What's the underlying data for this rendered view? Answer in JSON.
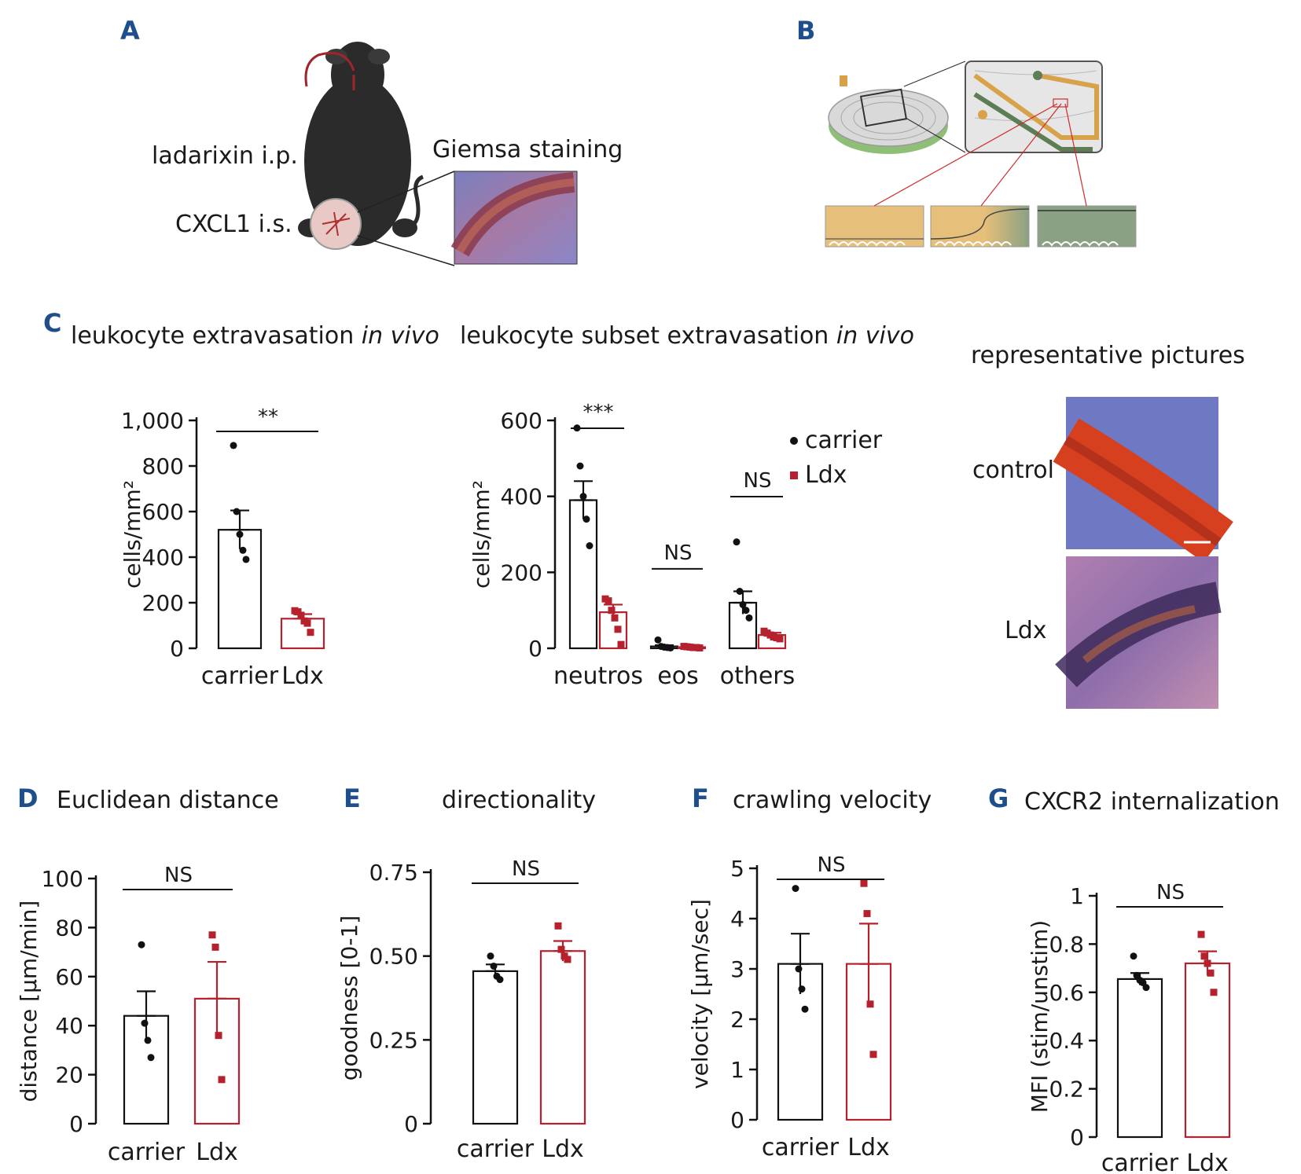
{
  "panels": {
    "A": {
      "letter": "A",
      "drug_label": "ladarixin i.p.",
      "chemokine_label": "CXCL1 i.s.",
      "stain_label": "Giemsa staining"
    },
    "B": {
      "letter": "B"
    },
    "C": {
      "letter": "C",
      "images_title": "representative pictures",
      "image_labels": [
        "control",
        "Ldx"
      ]
    },
    "D": {
      "letter": "D"
    },
    "E": {
      "letter": "E"
    },
    "F": {
      "letter": "F"
    },
    "G": {
      "letter": "G"
    }
  },
  "colors": {
    "carrier": "#111111",
    "ldx": "#b5222d",
    "letter": "#1f4e8c"
  },
  "chart_data": [
    {
      "id": "C1",
      "type": "bar",
      "title": "leukocyte extravasation ",
      "title_italic": "in vivo",
      "ylabel": "cells/mm²",
      "ylim": [
        0,
        1000
      ],
      "yticks": [
        0,
        200,
        400,
        600,
        800,
        1000
      ],
      "ytick_labels": [
        "0",
        "200",
        "400",
        "600",
        "800",
        "1,000"
      ],
      "categories": [
        "carrier",
        "Ldx"
      ],
      "values": [
        520,
        130
      ],
      "errors": [
        85,
        20
      ],
      "points": [
        [
          890,
          600,
          500,
          430,
          390
        ],
        [
          165,
          160,
          145,
          120,
          110,
          70
        ]
      ],
      "annotations": [
        {
          "text": "**",
          "from": 0,
          "to": 1,
          "y": 1000
        }
      ]
    },
    {
      "id": "C2",
      "type": "bar",
      "title": "leukocyte subset extravasation ",
      "title_italic": "in vivo",
      "ylabel": "cells/mm²",
      "ylim": [
        0,
        600
      ],
      "yticks": [
        0,
        200,
        400,
        600
      ],
      "ytick_labels": [
        "0",
        "200",
        "400",
        "600"
      ],
      "categories": [
        "neutros",
        "eos",
        "others"
      ],
      "series": [
        {
          "name": "carrier",
          "values": [
            390,
            5,
            120
          ],
          "errors": [
            50,
            3,
            30
          ],
          "points": [
            [
              580,
              480,
              400,
              340,
              270
            ],
            [
              22,
              5,
              3,
              2,
              1
            ],
            [
              280,
              150,
              115,
              100,
              80
            ]
          ]
        },
        {
          "name": "Ldx",
          "values": [
            95,
            3,
            35
          ],
          "errors": [
            20,
            1,
            6
          ],
          "points": [
            [
              130,
              125,
              100,
              80,
              50,
              10
            ],
            [
              5,
              4,
              3,
              2,
              2,
              1
            ],
            [
              45,
              40,
              35,
              30,
              28,
              25
            ]
          ]
        }
      ],
      "legend": [
        "carrier",
        "Ldx"
      ],
      "annotations": [
        {
          "text": "***",
          "group": 0,
          "y": 600
        },
        {
          "text": "NS",
          "group": 1,
          "y": 230
        },
        {
          "text": "NS",
          "group": 2,
          "y": 420
        }
      ]
    },
    {
      "id": "D",
      "type": "bar",
      "title": "Euclidean distance",
      "ylabel": "distance [µm/min]",
      "ylim": [
        0,
        100
      ],
      "yticks": [
        0,
        20,
        40,
        60,
        80,
        100
      ],
      "ytick_labels": [
        "0",
        "20",
        "40",
        "60",
        "80",
        "100"
      ],
      "categories": [
        "carrier",
        "Ldx"
      ],
      "values": [
        44,
        51
      ],
      "errors": [
        10,
        15
      ],
      "points": [
        [
          73,
          41,
          34,
          27
        ],
        [
          77,
          72,
          36,
          18
        ]
      ],
      "annotations": [
        {
          "text": "NS",
          "from": 0,
          "to": 1,
          "y": 100
        }
      ]
    },
    {
      "id": "E",
      "type": "bar",
      "title": "directionality",
      "ylabel": "goodness [0-1]",
      "ylim": [
        0,
        0.75
      ],
      "yticks": [
        0,
        0.25,
        0.5,
        0.75
      ],
      "ytick_labels": [
        "0",
        "0.25",
        "0.50",
        "0.75"
      ],
      "categories": [
        "carrier",
        "Ldx"
      ],
      "values": [
        0.455,
        0.515
      ],
      "errors": [
        0.02,
        0.03
      ],
      "points": [
        [
          0.5,
          0.47,
          0.44,
          0.43
        ],
        [
          0.59,
          0.52,
          0.5,
          0.49
        ]
      ],
      "annotations": [
        {
          "text": "NS",
          "from": 0,
          "to": 1,
          "y": 0.75
        }
      ]
    },
    {
      "id": "F",
      "type": "bar",
      "title": "crawling velocity",
      "ylabel": "velocity [µm/sec]",
      "ylim": [
        0,
        5
      ],
      "yticks": [
        0,
        1,
        2,
        3,
        4,
        5
      ],
      "ytick_labels": [
        "0",
        "1",
        "2",
        "3",
        "4",
        "5"
      ],
      "categories": [
        "carrier",
        "Ldx"
      ],
      "values": [
        3.1,
        3.1
      ],
      "errors": [
        0.6,
        0.8
      ],
      "points": [
        [
          4.6,
          3.0,
          2.6,
          2.2
        ],
        [
          4.7,
          4.1,
          2.3,
          1.3
        ]
      ],
      "annotations": [
        {
          "text": "NS",
          "from": 0,
          "to": 1,
          "y": 5
        }
      ]
    },
    {
      "id": "G",
      "type": "bar",
      "title": "CXCR2 internalization",
      "ylabel": "MFI (stim/unstim)",
      "ylim": [
        0,
        1
      ],
      "yticks": [
        0,
        0.2,
        0.4,
        0.6,
        0.8,
        1
      ],
      "ytick_labels": [
        "0",
        "0.2",
        "0.4",
        "0.6",
        "0.8",
        "1"
      ],
      "categories": [
        "carrier",
        "Ldx"
      ],
      "values": [
        0.655,
        0.72
      ],
      "errors": [
        0.025,
        0.05
      ],
      "points": [
        [
          0.75,
          0.67,
          0.65,
          0.64,
          0.62
        ],
        [
          0.84,
          0.75,
          0.72,
          0.68,
          0.6
        ]
      ],
      "annotations": [
        {
          "text": "NS",
          "from": 0,
          "to": 1,
          "y": 1
        }
      ]
    }
  ]
}
